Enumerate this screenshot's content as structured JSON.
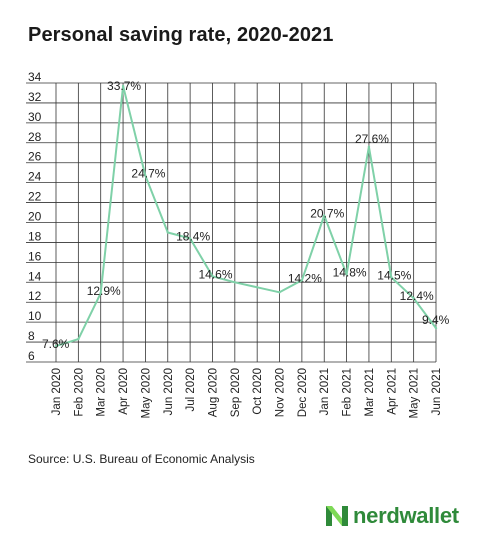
{
  "title": "Personal saving rate, 2020-2021",
  "source": "Source: U.S. Bureau of Economic Analysis",
  "brand": {
    "name": "nerdwallet",
    "logo_icon": "nerdwallet-n-icon"
  },
  "colors": {
    "line": "#7fd1a8",
    "grid": "#333333",
    "brand": "#2f8a3a",
    "logo_light": "#7ed957"
  },
  "chart_data": {
    "type": "line",
    "title": "Personal saving rate, 2020-2021",
    "xlabel": "",
    "ylabel": "",
    "ylim": [
      6,
      34
    ],
    "yticks": [
      6,
      8,
      10,
      12,
      14,
      16,
      18,
      20,
      22,
      24,
      26,
      28,
      30,
      32,
      34
    ],
    "grid": true,
    "categories": [
      "Jan 2020",
      "Feb 2020",
      "Mar 2020",
      "Apr 2020",
      "May 2020",
      "Jun 2020",
      "Jul 2020",
      "Aug 2020",
      "Sep 2020",
      "Oct 2020",
      "Nov 2020",
      "Dec 2020",
      "Jan 2021",
      "Feb 2021",
      "Mar 2021",
      "Apr 2021",
      "May 2021",
      "Jun 2021"
    ],
    "values": [
      7.6,
      8.3,
      12.9,
      33.7,
      24.7,
      19.0,
      18.4,
      14.6,
      14.0,
      13.5,
      13.0,
      14.2,
      20.7,
      14.8,
      27.6,
      14.5,
      12.4,
      9.4
    ],
    "data_labels": [
      {
        "index": 0,
        "text": "7.6%"
      },
      {
        "index": 2,
        "text": "12.9%"
      },
      {
        "index": 3,
        "text": "33.7%"
      },
      {
        "index": 4,
        "text": "24.7%"
      },
      {
        "index": 6,
        "text": "18.4%"
      },
      {
        "index": 7,
        "text": "14.6%"
      },
      {
        "index": 11,
        "text": "14.2%"
      },
      {
        "index": 12,
        "text": "20.7%"
      },
      {
        "index": 13,
        "text": "14.8%"
      },
      {
        "index": 14,
        "text": "27.6%"
      },
      {
        "index": 15,
        "text": "14.5%"
      },
      {
        "index": 16,
        "text": "12.4%"
      },
      {
        "index": 17,
        "text": "9.4%"
      }
    ]
  }
}
